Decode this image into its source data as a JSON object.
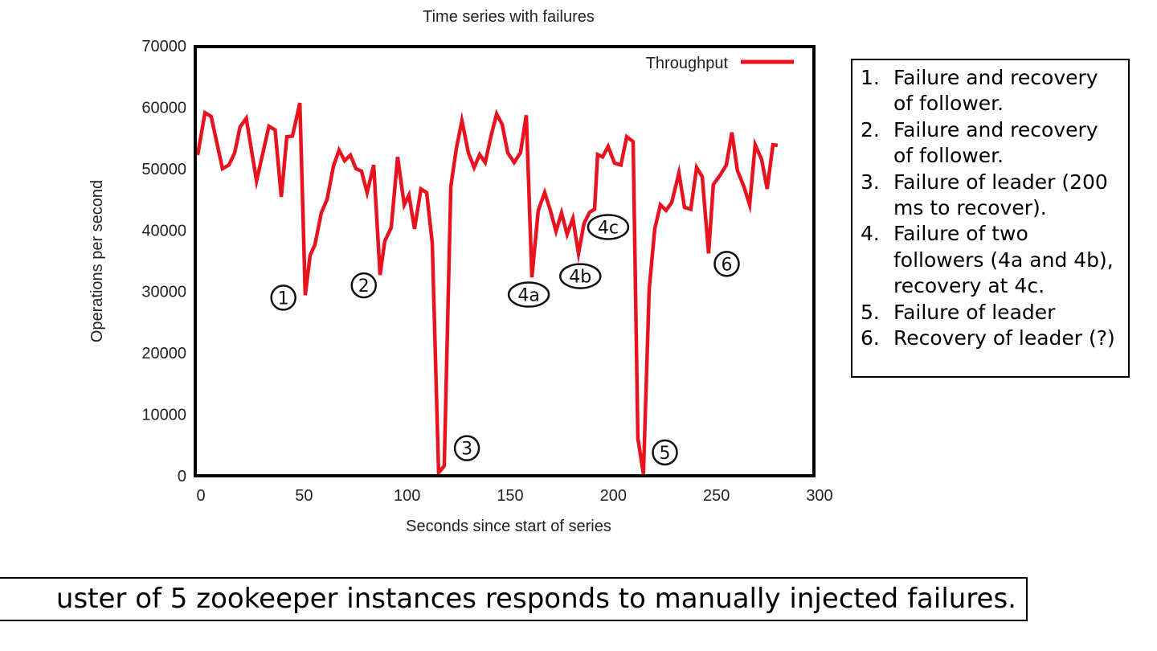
{
  "chart_data": {
    "type": "line",
    "title": "Time series with failures",
    "xlabel": "Seconds since start of series",
    "ylabel": "Operations per second",
    "xlim": [
      0,
      300
    ],
    "ylim": [
      0,
      70000
    ],
    "xticks": [
      0,
      50,
      100,
      150,
      200,
      250,
      300
    ],
    "yticks": [
      0,
      10000,
      20000,
      30000,
      40000,
      50000,
      60000,
      70000
    ],
    "grid": false,
    "legend": {
      "placement": "top-right",
      "entries": [
        "Throughput"
      ]
    },
    "series": [
      {
        "name": "Throughput",
        "color": "#e8131f",
        "x": [
          0,
          2,
          5,
          10.5,
          13.6,
          16.4,
          19,
          22,
          27,
          33,
          36,
          39,
          41.7,
          44.4,
          48,
          50.6,
          53,
          55.3,
          58.4,
          61.2,
          64.3,
          67,
          69.7,
          72.5,
          75.2,
          77.9,
          80.6,
          83.8,
          86.9,
          89.2,
          92.3,
          95.4,
          98.6,
          100.9,
          103.6,
          106.7,
          109.5,
          112.2,
          115.3,
          118,
          121.2,
          123.9,
          126.6,
          129.7,
          132.5,
          135.2,
          137.9,
          140.6,
          143.4,
          146.1,
          148.8,
          151.9,
          155,
          157.8,
          160.5,
          163.6,
          166.7,
          169.5,
          172.2,
          174.9,
          177.6,
          180.4,
          183.1,
          185.8,
          188.5,
          190.9,
          192.4,
          194.8,
          197.5,
          200.6,
          203.7,
          206.5,
          209.6,
          211.9,
          214.6,
          217.4,
          220.1,
          222.8,
          225.6,
          228.3,
          231.8,
          234.5,
          237.6,
          240.4,
          243.1,
          246.2,
          248.5,
          251.7,
          254.8,
          257.5,
          260.2,
          263.3,
          266.1,
          268.8,
          271.9,
          274.6,
          277.4,
          279.7
        ],
        "y": [
          52200,
          59100,
          58500,
          50000,
          50600,
          52600,
          56800,
          58200,
          48000,
          56900,
          56300,
          45400,
          55200,
          55300,
          60700,
          29400,
          35900,
          37600,
          42800,
          45000,
          50400,
          53000,
          51300,
          52200,
          50000,
          49600,
          46100,
          50600,
          32700,
          38200,
          40400,
          51900,
          44100,
          45700,
          40200,
          46700,
          46100,
          37900,
          500,
          1600,
          47100,
          53300,
          57800,
          52600,
          50200,
          52300,
          51000,
          55200,
          58900,
          57200,
          52600,
          51000,
          52600,
          58700,
          32300,
          43200,
          46100,
          43200,
          39800,
          42800,
          39300,
          41900,
          36200,
          41100,
          42900,
          43400,
          52300,
          51900,
          53600,
          50900,
          50600,
          55200,
          54400,
          6100,
          300,
          30400,
          40200,
          44100,
          43200,
          44500,
          49300,
          43700,
          43400,
          50200,
          48700,
          36200,
          47400,
          48900,
          50600,
          55900,
          49700,
          47100,
          44100,
          53900,
          51500,
          46700,
          53900,
          53800
        ]
      }
    ],
    "annotations": [
      {
        "label": "1",
        "shape": "circle",
        "x": 40,
        "y": 29000
      },
      {
        "label": "2",
        "shape": "circle",
        "x": 79,
        "y": 31000
      },
      {
        "label": "3",
        "shape": "circle",
        "x": 129,
        "y": 4500
      },
      {
        "label": "4a",
        "shape": "oval",
        "x": 159,
        "y": 29500
      },
      {
        "label": "4b",
        "shape": "oval",
        "x": 184,
        "y": 32500
      },
      {
        "label": "4c",
        "shape": "oval",
        "x": 197.5,
        "y": 40500
      },
      {
        "label": "5",
        "shape": "circle",
        "x": 225,
        "y": 3800
      },
      {
        "label": "6",
        "shape": "circle",
        "x": 255,
        "y": 34500
      }
    ]
  },
  "notes": {
    "items": [
      {
        "num": "1.",
        "text": "Failure and recovery of follower."
      },
      {
        "num": "2.",
        "text": "Failure and recovery of follower."
      },
      {
        "num": "3.",
        "text": "Failure of leader (200 ms to recover)."
      },
      {
        "num": "4.",
        "text": "Failure of two followers (4a and 4b), recovery at 4c."
      },
      {
        "num": "5.",
        "text": "Failure of leader"
      },
      {
        "num": "6.",
        "text": "Recovery of leader (?)"
      }
    ]
  },
  "caption": "uster of 5 zookeeper instances responds to manually injected failures."
}
